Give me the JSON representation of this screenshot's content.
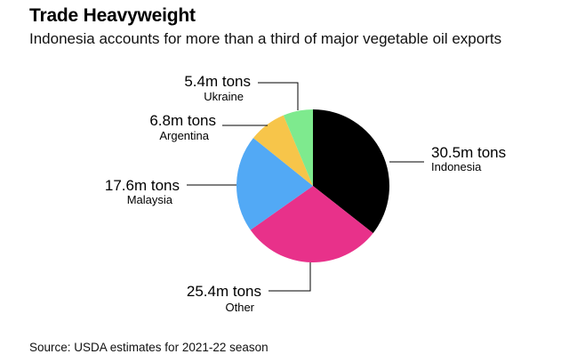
{
  "header": {
    "title": "Trade Heavyweight",
    "subtitle": "Indonesia accounts for more than a third of major vegetable oil exports"
  },
  "footer": {
    "source": "Source: USDA estimates for 2021-22 season"
  },
  "chart_data": {
    "type": "pie",
    "title": "Trade Heavyweight",
    "subtitle": "Indonesia accounts for more than a third of major vegetable oil exports",
    "unit": "m tons",
    "start": "12 o'clock",
    "direction": "clockwise",
    "legend": "none",
    "slices": [
      {
        "name": "Indonesia",
        "value": 30.5,
        "value_label": "30.5m tons",
        "color": "#000000"
      },
      {
        "name": "Other",
        "value": 25.4,
        "value_label": "25.4m tons",
        "color": "#e8318a"
      },
      {
        "name": "Malaysia",
        "value": 17.6,
        "value_label": "17.6m tons",
        "color": "#52a9f5"
      },
      {
        "name": "Argentina",
        "value": 6.8,
        "value_label": "6.8m tons",
        "color": "#f7c54a"
      },
      {
        "name": "Ukraine",
        "value": 5.4,
        "value_label": "5.4m tons",
        "color": "#7eea8e"
      }
    ]
  }
}
